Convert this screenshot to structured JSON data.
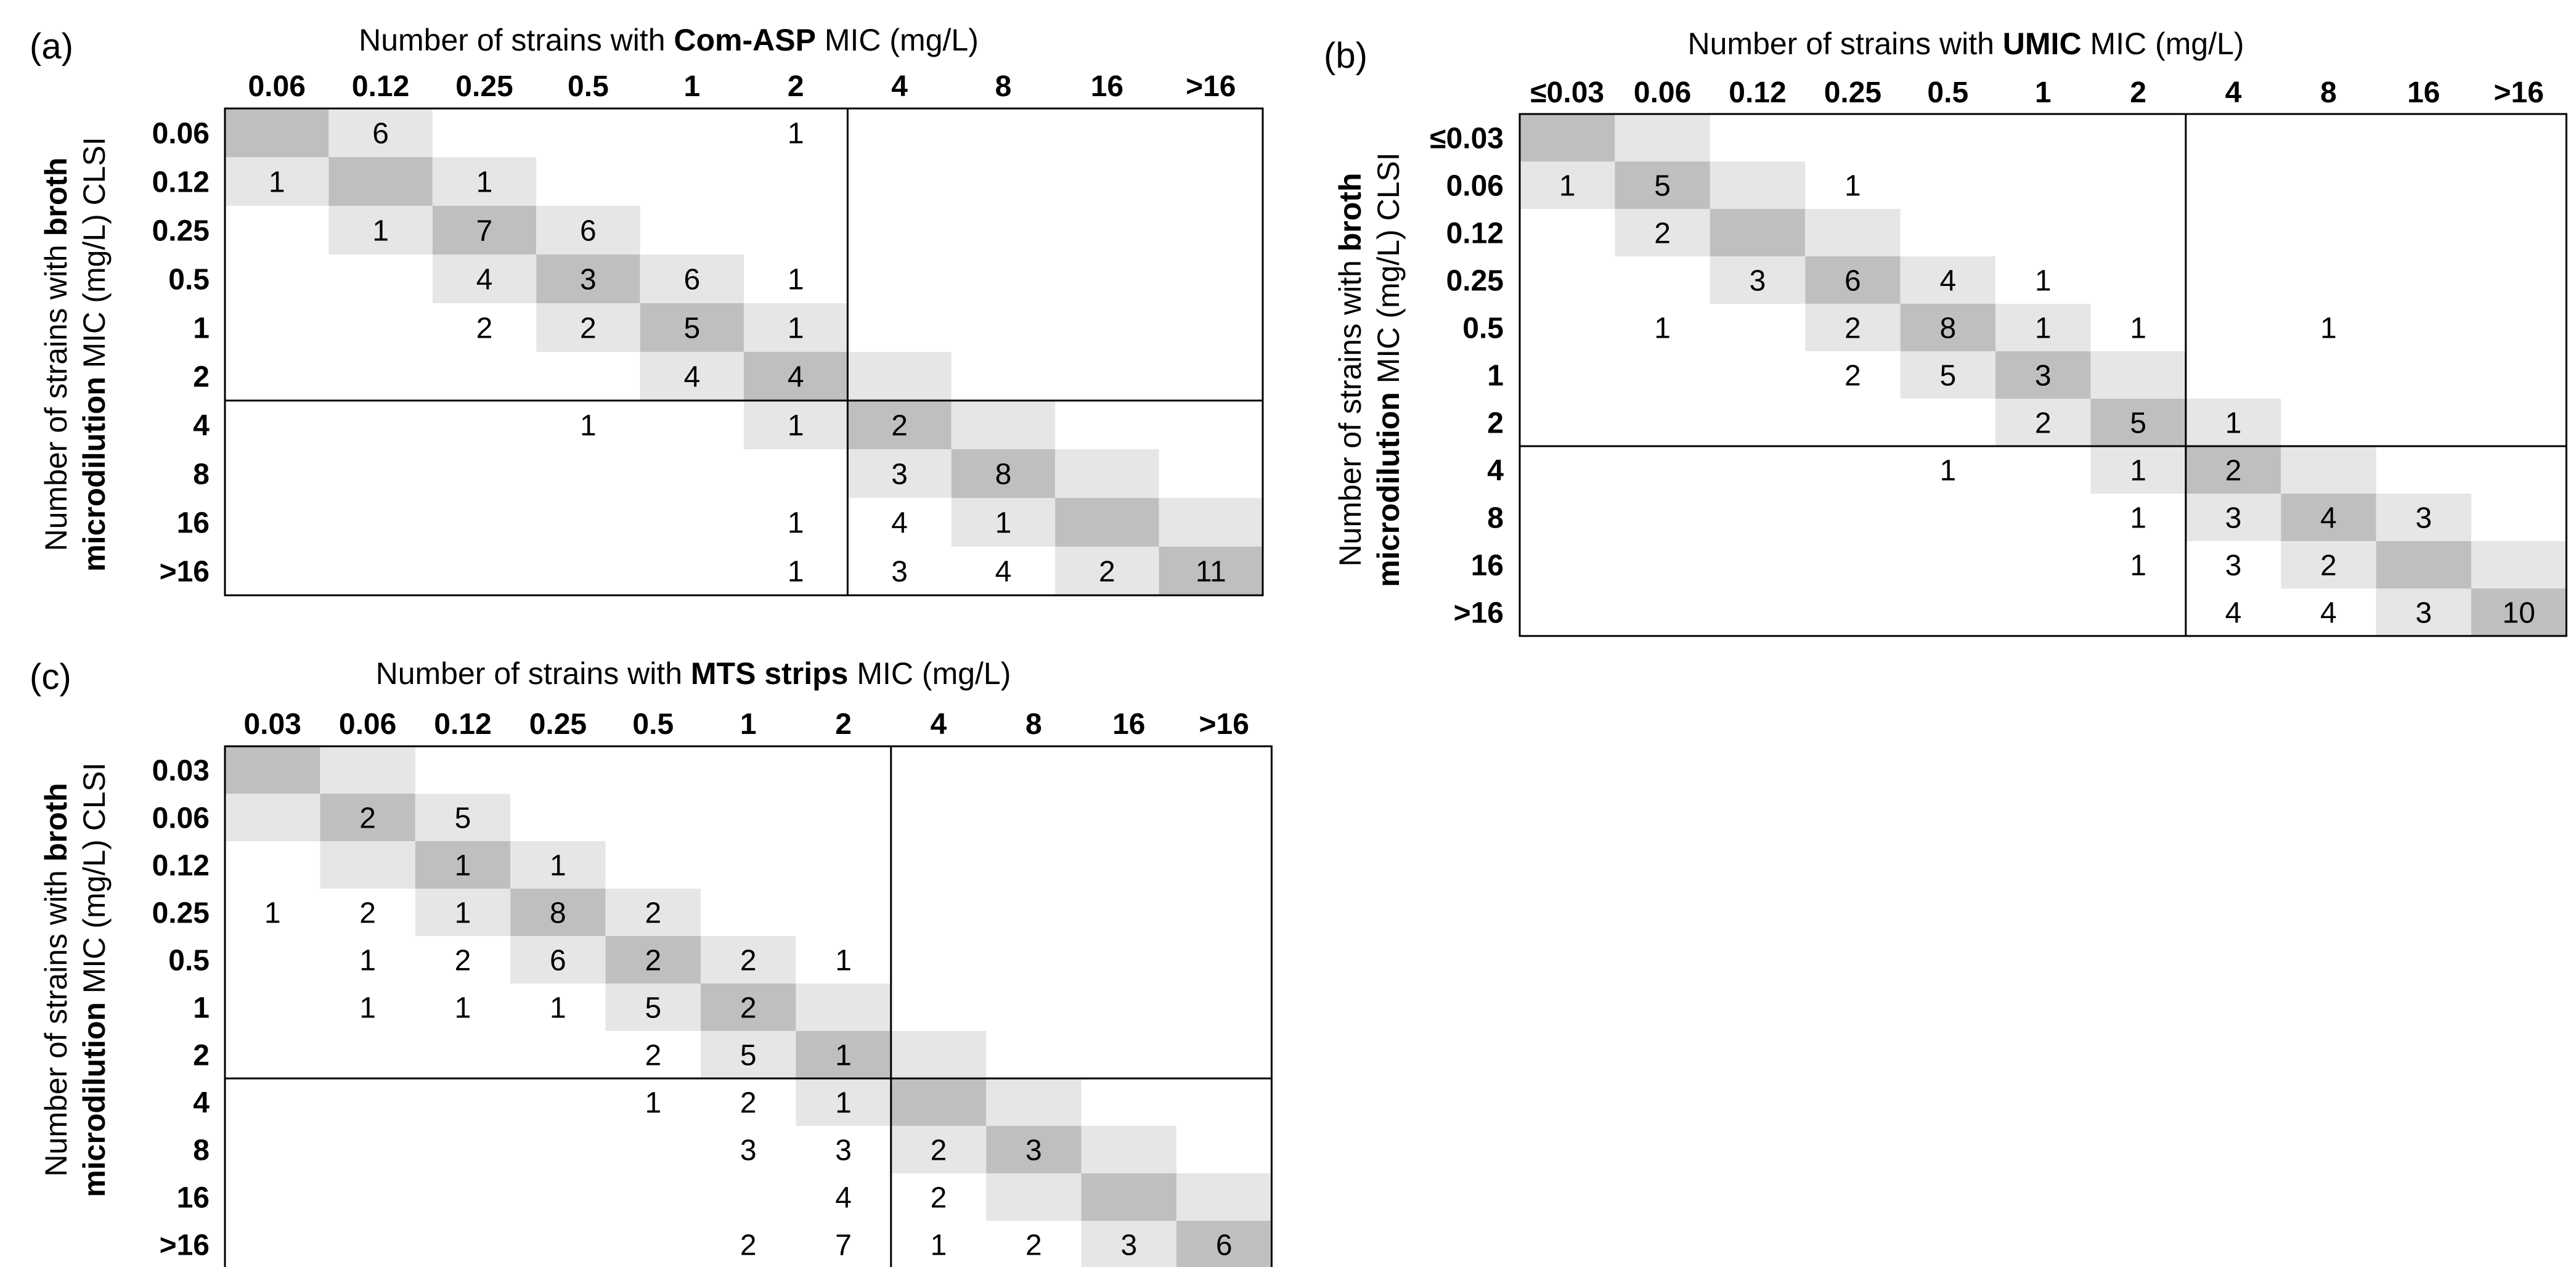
{
  "chart_data": [
    {
      "type": "heatmap",
      "panel_label": "(a)",
      "x_title": {
        "prefix": "Number of strains with ",
        "method": "Com-ASP",
        "suffix": " MIC (mg/L)"
      },
      "y_title": {
        "line1": "Number of strains with ",
        "line1_bold": "broth",
        "line2_bold": "microdilution",
        "line2": " MIC (mg/L) CLSI"
      },
      "x_categories": [
        "0.06",
        "0.12",
        "0.25",
        "0.5",
        "1",
        "2",
        "4",
        "8",
        "16",
        ">16"
      ],
      "y_categories": [
        "0.06",
        "0.12",
        "0.25",
        "0.5",
        "1",
        "2",
        "4",
        "8",
        "16",
        ">16"
      ],
      "breakpoint_after_index": 5,
      "cells": [
        [
          null,
          6,
          null,
          null,
          null,
          1,
          null,
          null,
          null,
          null
        ],
        [
          1,
          null,
          1,
          null,
          null,
          null,
          null,
          null,
          null,
          null
        ],
        [
          null,
          1,
          7,
          6,
          null,
          null,
          null,
          null,
          null,
          null
        ],
        [
          null,
          null,
          4,
          3,
          6,
          1,
          null,
          null,
          null,
          null
        ],
        [
          null,
          null,
          2,
          2,
          5,
          1,
          null,
          null,
          null,
          null
        ],
        [
          null,
          null,
          null,
          null,
          4,
          4,
          null,
          null,
          null,
          null
        ],
        [
          null,
          null,
          null,
          1,
          null,
          1,
          2,
          null,
          null,
          null
        ],
        [
          null,
          null,
          null,
          null,
          null,
          null,
          3,
          8,
          null,
          null
        ],
        [
          null,
          null,
          null,
          null,
          null,
          1,
          4,
          1,
          null,
          null
        ],
        [
          null,
          null,
          null,
          null,
          null,
          1,
          3,
          4,
          2,
          11
        ]
      ],
      "colors": {
        "diagonal": "#bfbfbf",
        "near_diagonal": "#e6e6e6",
        "border": "#000000"
      }
    },
    {
      "type": "heatmap",
      "panel_label": "(b)",
      "x_title": {
        "prefix": "Number of strains with ",
        "method": "UMIC",
        "suffix": " MIC (mg/L)"
      },
      "y_title": {
        "line1": "Number of strains with ",
        "line1_bold": "broth",
        "line2_bold": "microdilution",
        "line2": " MIC (mg/L) CLSI"
      },
      "x_categories": [
        "≤0.03",
        "0.06",
        "0.12",
        "0.25",
        "0.5",
        "1",
        "2",
        "4",
        "8",
        "16",
        ">16"
      ],
      "y_categories": [
        "≤0.03",
        "0.06",
        "0.12",
        "0.25",
        "0.5",
        "1",
        "2",
        "4",
        "8",
        "16",
        ">16"
      ],
      "breakpoint_after_index": 6,
      "cells": [
        [
          null,
          null,
          null,
          null,
          null,
          null,
          null,
          null,
          null,
          null,
          null
        ],
        [
          1,
          5,
          null,
          1,
          null,
          null,
          null,
          null,
          null,
          null,
          null
        ],
        [
          null,
          2,
          null,
          null,
          null,
          null,
          null,
          null,
          null,
          null,
          null
        ],
        [
          null,
          null,
          3,
          6,
          4,
          1,
          null,
          null,
          null,
          null,
          null
        ],
        [
          null,
          1,
          null,
          2,
          8,
          1,
          1,
          null,
          1,
          null,
          null
        ],
        [
          null,
          null,
          null,
          2,
          5,
          3,
          null,
          null,
          null,
          null,
          null
        ],
        [
          null,
          null,
          null,
          null,
          null,
          2,
          5,
          1,
          null,
          null,
          null
        ],
        [
          null,
          null,
          null,
          null,
          1,
          null,
          1,
          2,
          null,
          null,
          null
        ],
        [
          null,
          null,
          null,
          null,
          null,
          null,
          1,
          3,
          4,
          3,
          null
        ],
        [
          null,
          null,
          null,
          null,
          null,
          null,
          1,
          3,
          2,
          null,
          null
        ],
        [
          null,
          null,
          null,
          null,
          null,
          null,
          null,
          4,
          4,
          3,
          10
        ]
      ],
      "colors": {
        "diagonal": "#bfbfbf",
        "near_diagonal": "#e6e6e6",
        "border": "#000000"
      }
    },
    {
      "type": "heatmap",
      "panel_label": "(c)",
      "x_title": {
        "prefix": "Number of strains with ",
        "method": "MTS strips",
        "suffix": " MIC (mg/L)"
      },
      "y_title": {
        "line1": "Number of strains with ",
        "line1_bold": "broth",
        "line2_bold": "microdilution",
        "line2": " MIC (mg/L) CLSI"
      },
      "x_categories": [
        "0.03",
        "0.06",
        "0.12",
        "0.25",
        "0.5",
        "1",
        "2",
        "4",
        "8",
        "16",
        ">16"
      ],
      "y_categories": [
        "0.03",
        "0.06",
        "0.12",
        "0.25",
        "0.5",
        "1",
        "2",
        "4",
        "8",
        "16",
        ">16"
      ],
      "breakpoint_after_index": 6,
      "cells": [
        [
          null,
          null,
          null,
          null,
          null,
          null,
          null,
          null,
          null,
          null,
          null
        ],
        [
          null,
          2,
          5,
          null,
          null,
          null,
          null,
          null,
          null,
          null,
          null
        ],
        [
          null,
          null,
          1,
          1,
          null,
          null,
          null,
          null,
          null,
          null,
          null
        ],
        [
          1,
          2,
          1,
          8,
          2,
          null,
          null,
          null,
          null,
          null,
          null
        ],
        [
          null,
          1,
          2,
          6,
          2,
          2,
          1,
          null,
          null,
          null,
          null
        ],
        [
          null,
          1,
          1,
          1,
          5,
          2,
          null,
          null,
          null,
          null,
          null
        ],
        [
          null,
          null,
          null,
          null,
          2,
          5,
          1,
          null,
          null,
          null,
          null
        ],
        [
          null,
          null,
          null,
          null,
          1,
          2,
          1,
          null,
          null,
          null,
          null
        ],
        [
          null,
          null,
          null,
          null,
          null,
          3,
          3,
          2,
          3,
          null,
          null
        ],
        [
          null,
          null,
          null,
          null,
          null,
          null,
          4,
          2,
          null,
          null,
          null
        ],
        [
          null,
          null,
          null,
          null,
          null,
          2,
          7,
          1,
          2,
          3,
          6
        ]
      ],
      "colors": {
        "diagonal": "#bfbfbf",
        "near_diagonal": "#e6e6e6",
        "border": "#000000"
      }
    }
  ]
}
